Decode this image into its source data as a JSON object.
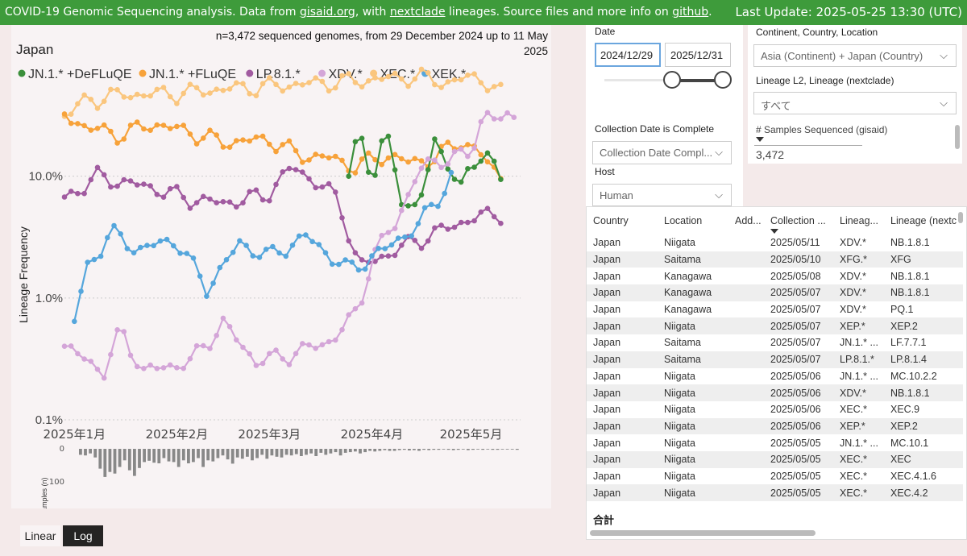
{
  "topbar": {
    "text1": "COVID-19 Genomic Sequencing analysis. Data from ",
    "link1": "gisaid.org",
    "text2": ", with ",
    "link2": "nextclade",
    "text3": " lineages. Source files and more info on ",
    "link3": "github",
    "text4": ".",
    "last_update": "Last Update: 2025-05-25 13:30 (UTC)"
  },
  "chart_header": {
    "country": "Japan",
    "subtitle_line1": "n=3,472 sequenced genomes, from 29 December 2024 up to 11 May",
    "subtitle_line2": "2025"
  },
  "chart_data": {
    "type": "line",
    "title": "",
    "ylabel": "Lineage Frequency",
    "yscale": "log",
    "ylim": [
      0.001,
      0.6
    ],
    "yticks": [
      {
        "v": 0.1,
        "label": "10.0%"
      },
      {
        "v": 0.01,
        "label": "1.0%"
      },
      {
        "v": 0.001,
        "label": "0.1%"
      }
    ],
    "xticks": [
      {
        "d": "2025-01-01",
        "label": "2025年1月"
      },
      {
        "d": "2025-02-01",
        "label": "2025年2月"
      },
      {
        "d": "2025-03-01",
        "label": "2025年3月"
      },
      {
        "d": "2025-04-01",
        "label": "2025年4月"
      },
      {
        "d": "2025-05-01",
        "label": "2025年5月"
      }
    ],
    "x_start": "2024-12-29",
    "x_end": "2025-05-16",
    "series": [
      {
        "name": "XEC.*",
        "color": "#fac67e",
        "x": [
          "2024-12-29",
          "2025-01-05",
          "2025-01-12",
          "2025-01-20",
          "2025-02-01",
          "2025-02-15",
          "2025-03-01",
          "2025-03-15",
          "2025-04-01",
          "2025-04-15",
          "2025-04-25",
          "2025-05-01",
          "2025-05-05",
          "2025-05-10"
        ],
        "y": [
          0.32,
          0.42,
          0.46,
          0.47,
          0.48,
          0.52,
          0.55,
          0.58,
          0.62,
          0.66,
          0.58,
          0.66,
          0.62,
          0.48
        ]
      },
      {
        "name": "JN.1.* +FLuQE",
        "color": "#f7a23a",
        "x": [
          "2024-12-29",
          "2025-01-05",
          "2025-01-15",
          "2025-01-25",
          "2025-02-05",
          "2025-02-15",
          "2025-03-01",
          "2025-03-10",
          "2025-03-20",
          "2025-03-27",
          "2025-04-05",
          "2025-04-12",
          "2025-04-20",
          "2025-04-28",
          "2025-05-05",
          "2025-05-10"
        ],
        "y": [
          0.32,
          0.25,
          0.22,
          0.27,
          0.23,
          0.19,
          0.2,
          0.15,
          0.14,
          0.12,
          0.15,
          0.13,
          0.14,
          0.2,
          0.14,
          0.1
        ]
      },
      {
        "name": "JN.1.* +DeFLuQE",
        "color": "#3b8f3b",
        "x": [
          "2025-03-25",
          "2025-03-28",
          "2025-04-01",
          "2025-04-05",
          "2025-04-10",
          "2025-04-15",
          "2025-04-20",
          "2025-04-28",
          "2025-05-05",
          "2025-05-10"
        ],
        "y": [
          0.1,
          0.26,
          0.09,
          0.23,
          0.07,
          0.05,
          0.2,
          0.08,
          0.18,
          0.09
        ]
      },
      {
        "name": "LP.8.1.*",
        "color": "#a15ba0",
        "x": [
          "2024-12-29",
          "2025-01-08",
          "2025-01-15",
          "2025-01-25",
          "2025-02-05",
          "2025-02-15",
          "2025-02-28",
          "2025-03-08",
          "2025-03-15",
          "2025-03-22",
          "2025-03-28",
          "2025-04-01",
          "2025-04-15",
          "2025-05-01",
          "2025-05-10"
        ],
        "y": [
          0.065,
          0.1,
          0.09,
          0.08,
          0.065,
          0.06,
          0.07,
          0.12,
          0.09,
          0.065,
          0.018,
          0.02,
          0.03,
          0.045,
          0.05
        ]
      },
      {
        "name": "XDV.*",
        "color": "#d4a5d8",
        "x": [
          "2024-12-29",
          "2025-01-10",
          "2025-01-15",
          "2025-01-22",
          "2025-02-05",
          "2025-02-15",
          "2025-02-25",
          "2025-03-08",
          "2025-03-20",
          "2025-03-28",
          "2025-04-01",
          "2025-04-08",
          "2025-04-15",
          "2025-04-22",
          "2025-05-01",
          "2025-05-05",
          "2025-05-10",
          "2025-05-15"
        ],
        "y": [
          0.004,
          0.0025,
          0.0055,
          0.0025,
          0.003,
          0.0062,
          0.003,
          0.0035,
          0.0045,
          0.008,
          0.022,
          0.04,
          0.11,
          0.14,
          0.15,
          0.35,
          0.28,
          0.32
        ]
      },
      {
        "name": "XEK.*",
        "color": "#55a6dc",
        "x": [
          "2025-01-01",
          "2025-01-05",
          "2025-01-12",
          "2025-01-20",
          "2025-02-01",
          "2025-02-10",
          "2025-02-20",
          "2025-03-01",
          "2025-03-12",
          "2025-03-25",
          "2025-04-05",
          "2025-04-15",
          "2025-04-20",
          "2025-04-25"
        ],
        "y": [
          0.0065,
          0.018,
          0.035,
          0.025,
          0.03,
          0.012,
          0.028,
          0.022,
          0.032,
          0.017,
          0.025,
          0.04,
          0.06,
          0.1
        ]
      }
    ]
  },
  "legend": [
    {
      "label": "JN.1.* +DeFLuQE",
      "color": "#3b8f3b"
    },
    {
      "label": "JN.1.* +FLuQE",
      "color": "#f7a23a"
    },
    {
      "label": "LP.8.1.*",
      "color": "#a15ba0"
    },
    {
      "label": "XDV.*",
      "color": "#d4a5d8"
    },
    {
      "label": "XEC.*",
      "color": "#fac67e"
    },
    {
      "label": "XEK.*",
      "color": "#55a6dc"
    }
  ],
  "samples_chart": {
    "ylabel": "samples (n)",
    "tick0": "0",
    "tick100": "100",
    "values": [
      18,
      20,
      14,
      26,
      60,
      85,
      70,
      75,
      55,
      35,
      65,
      82,
      58,
      40,
      36,
      42,
      44,
      28,
      38,
      40,
      55,
      35,
      44,
      40,
      28,
      55,
      35,
      38,
      28,
      20,
      32,
      45,
      26,
      30,
      24,
      35,
      28,
      18,
      30,
      20,
      24,
      26,
      18,
      20,
      16,
      22,
      18,
      14,
      22,
      12,
      18,
      14,
      10,
      20,
      12,
      10,
      8,
      14,
      10,
      6,
      8,
      6,
      4,
      6,
      6,
      4,
      3,
      5,
      4,
      6,
      3,
      4,
      3,
      3,
      2,
      3,
      4,
      3,
      2,
      4,
      3,
      2,
      3,
      2,
      3,
      3,
      2,
      2,
      2,
      3
    ]
  },
  "filters": {
    "date_label": "Date",
    "date_start": "2024/12/29",
    "date_end": "2025/12/31",
    "location_label": "Continent, Country, Location",
    "location_value": "Asia (Continent) + Japan (Country)",
    "lineage_label": "Lineage L2, Lineage (nextclade)",
    "lineage_value": "すべて",
    "complete_label": "Collection Date is Complete",
    "complete_placeholder": "Collection Date Compl...",
    "host_label": "Host",
    "host_value": "Human",
    "samples_label": "# Samples Sequenced (gisaid)",
    "samples_value": "3,472"
  },
  "table": {
    "headers": [
      "Country",
      "Location",
      "Add...",
      "Collection ...",
      "Lineag...",
      "Lineage (nextc"
    ],
    "rows": [
      [
        "Japan",
        "Niigata",
        "",
        "2025/05/11",
        "XDV.*",
        "NB.1.8.1"
      ],
      [
        "Japan",
        "Saitama",
        "",
        "2025/05/10",
        "XFG.*",
        "XFG"
      ],
      [
        "Japan",
        "Kanagawa",
        "",
        "2025/05/08",
        "XDV.*",
        "NB.1.8.1"
      ],
      [
        "Japan",
        "Kanagawa",
        "",
        "2025/05/07",
        "XDV.*",
        "NB.1.8.1"
      ],
      [
        "Japan",
        "Kanagawa",
        "",
        "2025/05/07",
        "XDV.*",
        "PQ.1"
      ],
      [
        "Japan",
        "Niigata",
        "",
        "2025/05/07",
        "XEP.*",
        "XEP.2"
      ],
      [
        "Japan",
        "Saitama",
        "",
        "2025/05/07",
        "JN.1.* ...",
        "LF.7.7.1"
      ],
      [
        "Japan",
        "Saitama",
        "",
        "2025/05/07",
        "LP.8.1.*",
        "LP.8.1.4"
      ],
      [
        "Japan",
        "Niigata",
        "",
        "2025/05/06",
        "JN.1.* ...",
        "MC.10.2.2"
      ],
      [
        "Japan",
        "Niigata",
        "",
        "2025/05/06",
        "XDV.*",
        "NB.1.8.1"
      ],
      [
        "Japan",
        "Niigata",
        "",
        "2025/05/06",
        "XEC.*",
        "XEC.9"
      ],
      [
        "Japan",
        "Niigata",
        "",
        "2025/05/06",
        "XEP.*",
        "XEP.2"
      ],
      [
        "Japan",
        "Niigata",
        "",
        "2025/05/05",
        "JN.1.* ...",
        "MC.10.1"
      ],
      [
        "Japan",
        "Niigata",
        "",
        "2025/05/05",
        "XEC.*",
        "XEC"
      ],
      [
        "Japan",
        "Niigata",
        "",
        "2025/05/05",
        "XEC.*",
        "XEC.4.1.6"
      ],
      [
        "Japan",
        "Niigata",
        "",
        "2025/05/05",
        "XEC.*",
        "XEC.4.2"
      ]
    ],
    "total_label": "合計"
  },
  "scale_buttons": {
    "linear": "Linear",
    "log": "Log"
  }
}
